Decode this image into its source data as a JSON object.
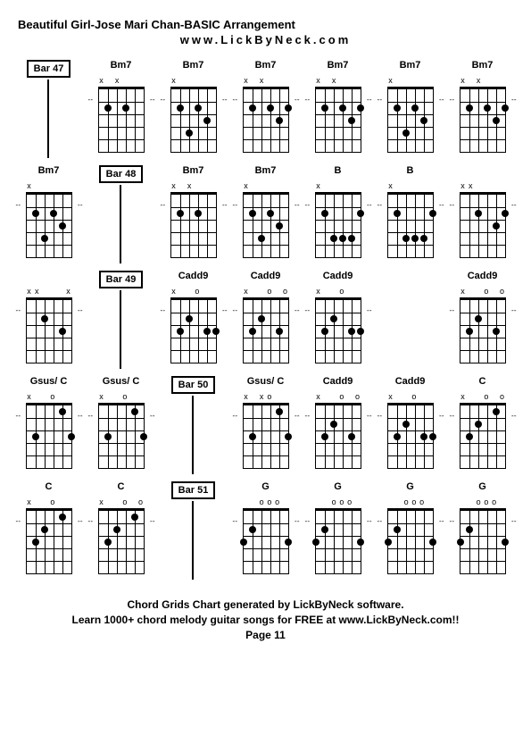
{
  "title": "Beautiful Girl-Jose Mari Chan-BASIC Arrangement",
  "subtitle": "www.LickByNeck.com",
  "footer": {
    "line1": "Chord Grids Chart generated by LickByNeck software.",
    "line2": "Learn 1000+ chord melody guitar songs for FREE at www.LickByNeck.com!!",
    "line3": "Page 11"
  },
  "frets": 5,
  "strings": 6,
  "rows": [
    [
      {
        "type": "bar",
        "label": "Bar 47"
      },
      {
        "type": "chord",
        "label": "Bm7",
        "markers": [
          "x",
          "",
          "x",
          "",
          "",
          ""
        ],
        "dots": [
          [
            2,
            2
          ],
          [
            4,
            2
          ]
        ]
      },
      {
        "type": "chord",
        "label": "Bm7",
        "markers": [
          "x",
          "",
          "",
          "",
          "",
          ""
        ],
        "dots": [
          [
            2,
            2
          ],
          [
            3,
            4
          ],
          [
            4,
            2
          ],
          [
            5,
            3
          ]
        ]
      },
      {
        "type": "chord",
        "label": "Bm7",
        "markers": [
          "x",
          "",
          "x",
          "",
          "",
          ""
        ],
        "dots": [
          [
            2,
            2
          ],
          [
            4,
            2
          ],
          [
            5,
            3
          ],
          [
            6,
            2
          ]
        ]
      },
      {
        "type": "chord",
        "label": "Bm7",
        "markers": [
          "x",
          "",
          "x",
          "",
          "",
          ""
        ],
        "dots": [
          [
            2,
            2
          ],
          [
            4,
            2
          ],
          [
            5,
            3
          ],
          [
            6,
            2
          ]
        ]
      },
      {
        "type": "chord",
        "label": "Bm7",
        "markers": [
          "x",
          "",
          "",
          "",
          "",
          ""
        ],
        "dots": [
          [
            2,
            2
          ],
          [
            3,
            4
          ],
          [
            4,
            2
          ],
          [
            5,
            3
          ]
        ]
      },
      {
        "type": "chord",
        "label": "Bm7",
        "markers": [
          "x",
          "",
          "x",
          "",
          "",
          ""
        ],
        "dots": [
          [
            2,
            2
          ],
          [
            4,
            2
          ],
          [
            5,
            3
          ],
          [
            6,
            2
          ]
        ]
      }
    ],
    [
      {
        "type": "chord",
        "label": "Bm7",
        "markers": [
          "x",
          "",
          "",
          "",
          "",
          ""
        ],
        "dots": [
          [
            2,
            2
          ],
          [
            3,
            4
          ],
          [
            4,
            2
          ],
          [
            5,
            3
          ]
        ]
      },
      {
        "type": "bar",
        "label": "Bar 48"
      },
      {
        "type": "chord",
        "label": "Bm7",
        "markers": [
          "x",
          "",
          "x",
          "",
          "",
          ""
        ],
        "dots": [
          [
            2,
            2
          ],
          [
            4,
            2
          ]
        ]
      },
      {
        "type": "chord",
        "label": "Bm7",
        "markers": [
          "x",
          "",
          "",
          "",
          "",
          ""
        ],
        "dots": [
          [
            2,
            2
          ],
          [
            3,
            4
          ],
          [
            4,
            2
          ],
          [
            5,
            3
          ]
        ]
      },
      {
        "type": "chord",
        "label": "B",
        "markers": [
          "x",
          "",
          "",
          "",
          "",
          ""
        ],
        "dots": [
          [
            2,
            2
          ],
          [
            3,
            4
          ],
          [
            4,
            4
          ],
          [
            5,
            4
          ],
          [
            6,
            2
          ]
        ]
      },
      {
        "type": "chord",
        "label": "B",
        "markers": [
          "x",
          "",
          "",
          "",
          "",
          ""
        ],
        "dots": [
          [
            2,
            2
          ],
          [
            3,
            4
          ],
          [
            4,
            4
          ],
          [
            5,
            4
          ],
          [
            6,
            2
          ]
        ]
      },
      {
        "type": "chord",
        "label": "",
        "markers": [
          "x",
          "x",
          "",
          "",
          "",
          ""
        ],
        "dots": [
          [
            3,
            2
          ],
          [
            5,
            3
          ],
          [
            6,
            2
          ]
        ]
      }
    ],
    [
      {
        "type": "chord",
        "label": "",
        "markers": [
          "x",
          "x",
          "",
          "",
          "",
          "x"
        ],
        "dots": [
          [
            3,
            2
          ],
          [
            5,
            3
          ]
        ]
      },
      {
        "type": "bar",
        "label": "Bar 49"
      },
      {
        "type": "chord",
        "label": "Cadd9",
        "markers": [
          "x",
          "",
          "",
          "o",
          "",
          ""
        ],
        "dots": [
          [
            2,
            3
          ],
          [
            3,
            2
          ],
          [
            5,
            3
          ],
          [
            6,
            3
          ]
        ]
      },
      {
        "type": "chord",
        "label": "Cadd9",
        "markers": [
          "x",
          "",
          "",
          "o",
          "",
          "o"
        ],
        "dots": [
          [
            2,
            3
          ],
          [
            3,
            2
          ],
          [
            5,
            3
          ]
        ]
      },
      {
        "type": "chord",
        "label": "Cadd9",
        "markers": [
          "x",
          "",
          "",
          "o",
          "",
          ""
        ],
        "dots": [
          [
            2,
            3
          ],
          [
            3,
            2
          ],
          [
            5,
            3
          ],
          [
            6,
            3
          ]
        ]
      },
      {
        "type": "empty"
      },
      {
        "type": "chord",
        "label": "Cadd9",
        "markers": [
          "x",
          "",
          "",
          "o",
          "",
          "o"
        ],
        "dots": [
          [
            2,
            3
          ],
          [
            3,
            2
          ],
          [
            5,
            3
          ]
        ]
      }
    ],
    [
      {
        "type": "chord",
        "label": "Gsus/ C",
        "markers": [
          "x",
          "",
          "",
          "o",
          "",
          ""
        ],
        "dots": [
          [
            2,
            3
          ],
          [
            5,
            1
          ],
          [
            6,
            3
          ]
        ]
      },
      {
        "type": "chord",
        "label": "Gsus/ C",
        "markers": [
          "x",
          "",
          "",
          "o",
          "",
          ""
        ],
        "dots": [
          [
            2,
            3
          ],
          [
            5,
            1
          ],
          [
            6,
            3
          ]
        ]
      },
      {
        "type": "bar",
        "label": "Bar 50"
      },
      {
        "type": "chord",
        "label": "Gsus/ C",
        "markers": [
          "x",
          "",
          "x",
          "o",
          "",
          ""
        ],
        "dots": [
          [
            2,
            3
          ],
          [
            5,
            1
          ],
          [
            6,
            3
          ]
        ]
      },
      {
        "type": "chord",
        "label": "Cadd9",
        "markers": [
          "x",
          "",
          "",
          "o",
          "",
          "o"
        ],
        "dots": [
          [
            2,
            3
          ],
          [
            3,
            2
          ],
          [
            5,
            3
          ]
        ]
      },
      {
        "type": "chord",
        "label": "Cadd9",
        "markers": [
          "x",
          "",
          "",
          "o",
          "",
          ""
        ],
        "dots": [
          [
            2,
            3
          ],
          [
            3,
            2
          ],
          [
            5,
            3
          ],
          [
            6,
            3
          ]
        ]
      },
      {
        "type": "chord",
        "label": "C",
        "markers": [
          "x",
          "",
          "",
          "o",
          "",
          "o"
        ],
        "dots": [
          [
            2,
            3
          ],
          [
            3,
            2
          ],
          [
            5,
            1
          ]
        ]
      }
    ],
    [
      {
        "type": "chord",
        "label": "C",
        "markers": [
          "x",
          "",
          "",
          "o",
          "",
          ""
        ],
        "dots": [
          [
            2,
            3
          ],
          [
            3,
            2
          ],
          [
            5,
            1
          ]
        ]
      },
      {
        "type": "chord",
        "label": "C",
        "markers": [
          "x",
          "",
          "",
          "o",
          "",
          "o"
        ],
        "dots": [
          [
            2,
            3
          ],
          [
            3,
            2
          ],
          [
            5,
            1
          ]
        ]
      },
      {
        "type": "bar",
        "label": "Bar 51"
      },
      {
        "type": "chord",
        "label": "G",
        "markers": [
          "",
          "",
          "o",
          "o",
          "o",
          ""
        ],
        "dots": [
          [
            1,
            3
          ],
          [
            2,
            2
          ],
          [
            6,
            3
          ]
        ]
      },
      {
        "type": "chord",
        "label": "G",
        "markers": [
          "",
          "",
          "o",
          "o",
          "o",
          ""
        ],
        "dots": [
          [
            1,
            3
          ],
          [
            2,
            2
          ],
          [
            6,
            3
          ]
        ]
      },
      {
        "type": "chord",
        "label": "G",
        "markers": [
          "",
          "",
          "o",
          "o",
          "o",
          ""
        ],
        "dots": [
          [
            1,
            3
          ],
          [
            2,
            2
          ],
          [
            6,
            3
          ]
        ]
      },
      {
        "type": "chord",
        "label": "G",
        "markers": [
          "",
          "",
          "o",
          "o",
          "o",
          ""
        ],
        "dots": [
          [
            1,
            3
          ],
          [
            2,
            2
          ],
          [
            6,
            3
          ]
        ]
      }
    ]
  ]
}
